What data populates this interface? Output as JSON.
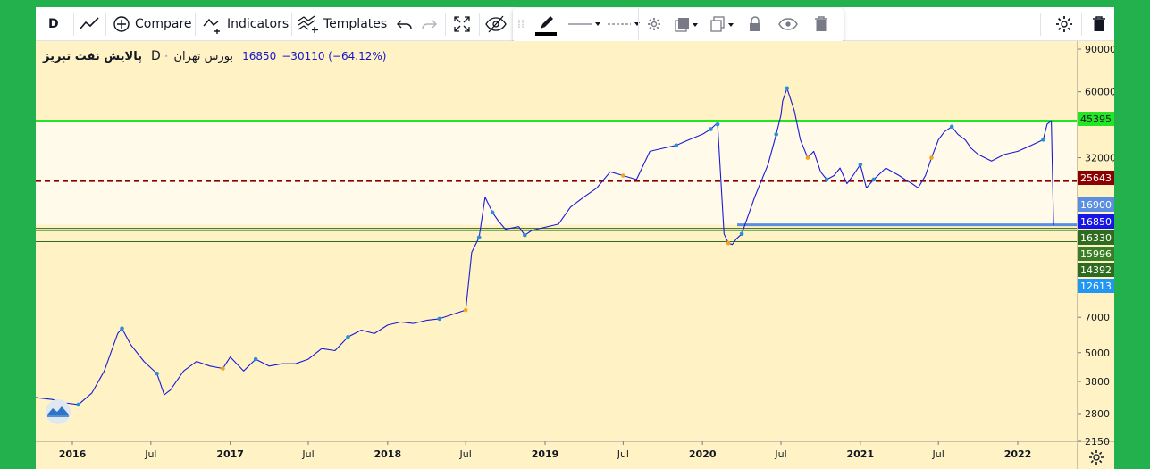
{
  "toolbar": {
    "interval": "D",
    "compare": "Compare",
    "indicators": "Indicators",
    "templates": "Templates"
  },
  "legend": {
    "name": "پالایش نفت تبریز",
    "interval": "D",
    "exchange": "بورس تهران",
    "price": "16850",
    "change": "−30110 (−64.12%)"
  },
  "colors": {
    "line": "#1a1ad6",
    "green_line": "#22e622",
    "red_line": "#8b0000",
    "blue_line": "#5b8ee0",
    "dark_green": "#2e6b1e",
    "axis_bg": "#fff3c5"
  },
  "chart_data": {
    "type": "line",
    "title": "",
    "ylabel": "",
    "xlabel": "",
    "yscale": "log",
    "grid": false,
    "ylim": [
      2150,
      90000
    ],
    "y_ticks": [
      90000,
      60000,
      45395,
      32000,
      25643,
      16900,
      16850,
      16330,
      15996,
      14392,
      12613,
      7000,
      5000,
      3800,
      2800,
      2150
    ],
    "x_ticks": [
      "2016",
      "Jul",
      "2017",
      "Jul",
      "2018",
      "Jul",
      "2019",
      "Jul",
      "2020",
      "Jul",
      "2021",
      "Jul",
      "2022"
    ],
    "x_tick_dates": [
      "2016-01-01",
      "2016-07-01",
      "2017-01-01",
      "2017-07-01",
      "2018-01-01",
      "2018-07-01",
      "2019-01-01",
      "2019-07-01",
      "2020-01-01",
      "2020-07-01",
      "2021-01-01",
      "2021-07-01",
      "2022-01-01"
    ],
    "series": [
      {
        "x": [
          "2015-09-15",
          "2015-10-15",
          "2015-11-15",
          "2015-12-15",
          "2016-01-15",
          "2016-02-15",
          "2016-03-15",
          "2016-04-15",
          "2016-04-25",
          "2016-05-15",
          "2016-06-15",
          "2016-07-15",
          "2016-08-01",
          "2016-08-15",
          "2016-09-15",
          "2016-10-15",
          "2016-11-15",
          "2016-12-15",
          "2017-01-01",
          "2017-02-01",
          "2017-03-01",
          "2017-04-01",
          "2017-05-01",
          "2017-06-01",
          "2017-07-01",
          "2017-08-01",
          "2017-09-01",
          "2017-10-01",
          "2017-11-01",
          "2017-12-01",
          "2018-01-01",
          "2018-02-01",
          "2018-03-01",
          "2018-04-01",
          "2018-05-01",
          "2018-06-01",
          "2018-07-01",
          "2018-07-15",
          "2018-08-01",
          "2018-08-15",
          "2018-09-01",
          "2018-09-15",
          "2018-10-01",
          "2018-11-01",
          "2018-11-15",
          "2018-12-01",
          "2019-01-01",
          "2019-02-01",
          "2019-03-01",
          "2019-04-01",
          "2019-05-01",
          "2019-06-01",
          "2019-07-01",
          "2019-08-01",
          "2019-09-01",
          "2019-10-01",
          "2019-11-01",
          "2019-12-01",
          "2020-01-01",
          "2020-01-20",
          "2020-02-01",
          "2020-02-05",
          "2020-02-20",
          "2020-03-01",
          "2020-03-10",
          "2020-03-20",
          "2020-04-01",
          "2020-05-01",
          "2020-06-01",
          "2020-06-20",
          "2020-07-01",
          "2020-07-05",
          "2020-07-15",
          "2020-08-01",
          "2020-08-15",
          "2020-09-01",
          "2020-09-15",
          "2020-10-01",
          "2020-10-15",
          "2020-11-01",
          "2020-11-15",
          "2020-12-01",
          "2020-12-15",
          "2021-01-01",
          "2021-01-15",
          "2021-02-01",
          "2021-03-01",
          "2021-04-01",
          "2021-04-15",
          "2021-05-01",
          "2021-05-15",
          "2021-06-01",
          "2021-06-15",
          "2021-07-01",
          "2021-07-15",
          "2021-08-01",
          "2021-08-15",
          "2021-09-01",
          "2021-09-15",
          "2021-10-01",
          "2021-11-01",
          "2021-12-01",
          "2022-01-01",
          "2022-02-01",
          "2022-03-01",
          "2022-03-10",
          "2022-03-20",
          "2022-03-25"
        ],
        "values": [
          3300,
          3250,
          3200,
          3100,
          3050,
          3400,
          4200,
          6000,
          6300,
          5400,
          4600,
          4100,
          3350,
          3500,
          4200,
          4600,
          4400,
          4300,
          4800,
          4200,
          4700,
          4400,
          4500,
          4500,
          4700,
          5200,
          5100,
          5800,
          6200,
          6000,
          6500,
          6700,
          6600,
          6800,
          6900,
          7200,
          7500,
          13000,
          15000,
          22000,
          19000,
          17500,
          16200,
          16600,
          15300,
          16000,
          16500,
          17000,
          20000,
          22000,
          24000,
          28000,
          27000,
          26000,
          34000,
          35000,
          36000,
          38000,
          40000,
          42000,
          44000,
          44000,
          15500,
          14200,
          14000,
          14800,
          15500,
          22000,
          30000,
          40000,
          48000,
          55000,
          62000,
          50000,
          38000,
          32000,
          34000,
          28000,
          26000,
          27000,
          29000,
          25000,
          27000,
          30000,
          24000,
          26000,
          29000,
          27000,
          26000,
          25000,
          24000,
          27000,
          32000,
          38000,
          41000,
          43000,
          40000,
          38000,
          35000,
          33000,
          31000,
          33000,
          34000,
          36000,
          38000,
          44000,
          45500,
          16850
        ],
        "name": ""
      }
    ],
    "horizontal_levels": [
      {
        "value": 45395,
        "style": "solid",
        "color": "#22e622",
        "label": "45395"
      },
      {
        "value": 25643,
        "style": "dashed",
        "color": "#8b0000",
        "label": "25643"
      },
      {
        "value": 16900,
        "style": "solid",
        "color": "#5b8ee0",
        "label": "16900"
      },
      {
        "value": 16850,
        "style": "solid",
        "color": "#1515e6",
        "label": "16850"
      },
      {
        "value": 16330,
        "style": "solid",
        "color": "#2e6b1e",
        "label": "16330"
      },
      {
        "value": 15996,
        "style": "solid",
        "color": "#3a7d24",
        "label": "15996"
      },
      {
        "value": 14392,
        "style": "solid",
        "color": "#2e6b1e",
        "label": "14392"
      },
      {
        "value": 12613,
        "style": "solid",
        "color": "#2196f3",
        "label": "12613"
      }
    ]
  }
}
